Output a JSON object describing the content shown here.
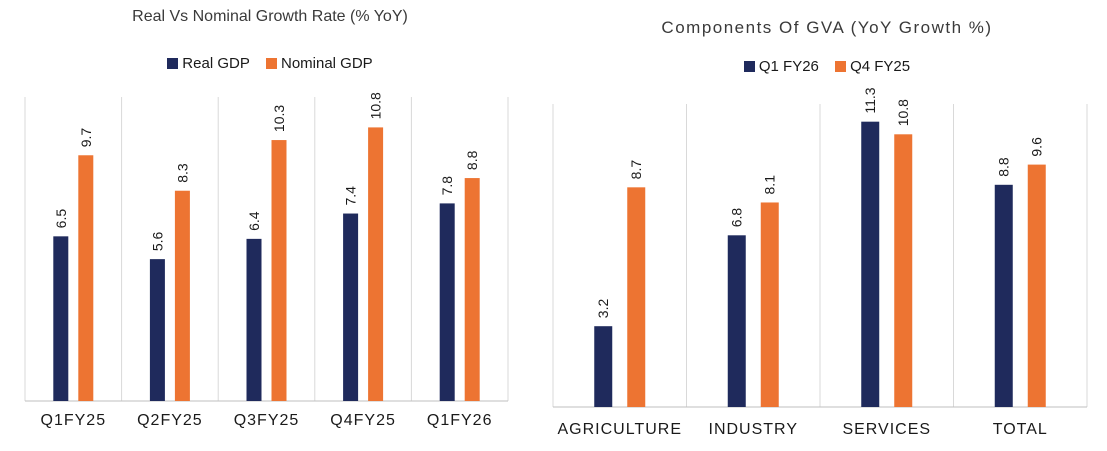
{
  "colors": {
    "series1": "#1f2a5c",
    "series2": "#ed7432",
    "grid": "#d9d9d9",
    "axis": "#bfbfbf"
  },
  "chart_data": [
    {
      "type": "bar",
      "title": "Real  Vs Nominal Growth Rate (% YoY)",
      "categories": [
        "Q1FY25",
        "Q2FY25",
        "Q3FY25",
        "Q4FY25",
        "Q1FY26"
      ],
      "series": [
        {
          "name": "Real GDP",
          "values": [
            6.5,
            5.6,
            6.4,
            7.4,
            7.8
          ]
        },
        {
          "name": "Nominal GDP",
          "values": [
            9.7,
            8.3,
            10.3,
            10.8,
            8.8
          ]
        }
      ],
      "labels": [
        [
          "6.5",
          "5.6",
          "6.4",
          "7.4",
          "7.8"
        ],
        [
          "9.7",
          "8.3",
          "10.3",
          "10.8",
          "8.8"
        ]
      ],
      "ylim": [
        0,
        12
      ],
      "xlabel": "",
      "ylabel": "",
      "legend": "top-center",
      "grid": "vertical-separators"
    },
    {
      "type": "bar",
      "title": "Components Of GVA (YoY Growth %)",
      "categories": [
        "AGRICULTURE",
        "INDUSTRY",
        "SERVICES",
        "TOTAL"
      ],
      "series": [
        {
          "name": "Q1 FY26",
          "values": [
            3.2,
            6.8,
            11.3,
            8.8
          ]
        },
        {
          "name": "Q4 FY25",
          "values": [
            8.7,
            8.1,
            10.8,
            9.6
          ]
        }
      ],
      "labels": [
        [
          "3.2",
          "6.8",
          "11.3",
          "8.8"
        ],
        [
          "8.7",
          "8.1",
          "10.8",
          "9.6"
        ]
      ],
      "ylim": [
        0,
        12
      ],
      "xlabel": "",
      "ylabel": "",
      "legend": "top-center",
      "grid": "vertical-separators"
    }
  ]
}
